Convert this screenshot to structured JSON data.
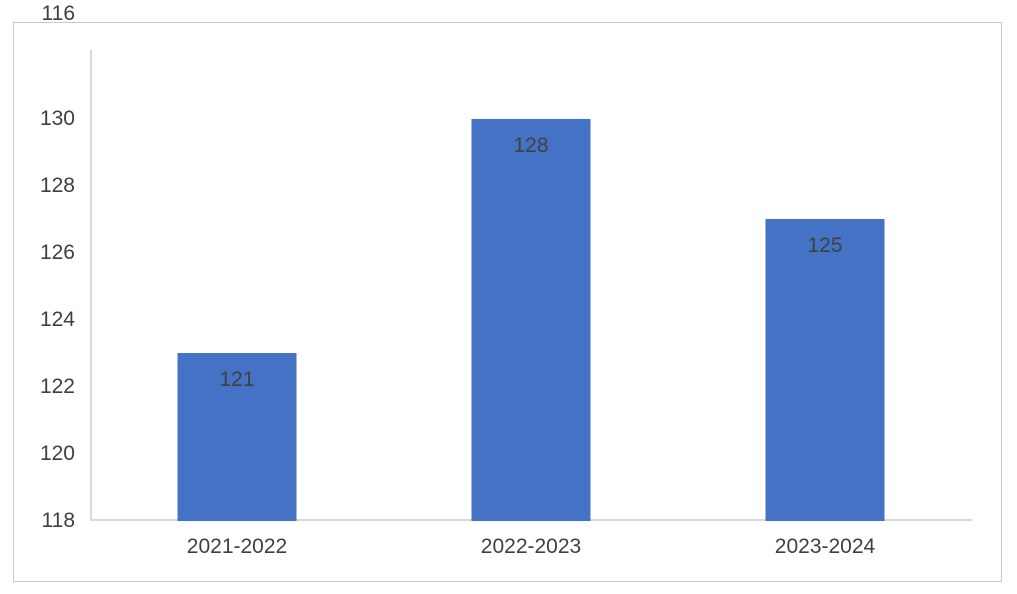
{
  "chart_data": {
    "type": "bar",
    "title": "",
    "xlabel": "",
    "ylabel": "",
    "categories": [
      "2021-2022",
      "2022-2023",
      "2023-2024"
    ],
    "values": [
      121,
      128,
      125
    ],
    "ylim": [
      116,
      130
    ],
    "ytick_step": 2,
    "yticks": [
      130,
      128,
      126,
      124,
      122,
      120,
      118,
      116
    ],
    "grid": "off",
    "legend": "none",
    "data_labels": "inside-end",
    "colors": {
      "bar": "#4472C4",
      "label_text": "#404040",
      "axis_line": "#D9D9D9",
      "frame_border": "#C8C8C8",
      "background": "#FFFFFF"
    }
  }
}
